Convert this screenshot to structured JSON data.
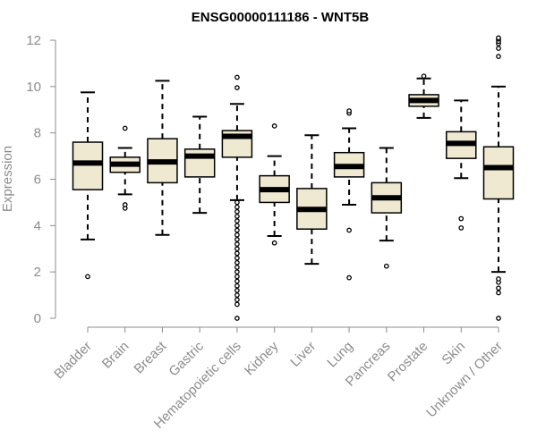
{
  "chart_data": {
    "type": "boxplot",
    "title": "ENSG00000111186 - WNT5B",
    "xlabel": "",
    "ylabel": "Expression",
    "ylim": [
      0,
      12
    ],
    "yticks": [
      0,
      2,
      4,
      6,
      8,
      10,
      12
    ],
    "categories": [
      "Bladder",
      "Brain",
      "Breast",
      "Gastric",
      "Hematopoietic cells",
      "Kidney",
      "Liver",
      "Lung",
      "Pancreas",
      "Prostate",
      "Skin",
      "Unknown / Other"
    ],
    "boxes": [
      {
        "name": "Bladder",
        "whisker_low": 3.4,
        "q1": 5.55,
        "median": 6.7,
        "q3": 7.6,
        "whisker_high": 9.75,
        "outliers": [
          1.8
        ]
      },
      {
        "name": "Brain",
        "whisker_low": 5.35,
        "q1": 6.3,
        "median": 6.65,
        "q3": 6.95,
        "whisker_high": 7.35,
        "outliers": [
          4.75,
          4.9,
          8.2
        ]
      },
      {
        "name": "Breast",
        "whisker_low": 3.6,
        "q1": 5.85,
        "median": 6.75,
        "q3": 7.75,
        "whisker_high": 10.25,
        "outliers": []
      },
      {
        "name": "Gastric",
        "whisker_low": 4.55,
        "q1": 6.1,
        "median": 7.0,
        "q3": 7.3,
        "whisker_high": 8.7,
        "outliers": []
      },
      {
        "name": "Hematopoietic cells",
        "whisker_low": 5.1,
        "q1": 6.95,
        "median": 7.85,
        "q3": 8.1,
        "whisker_high": 9.25,
        "outliers": [
          0.0,
          0.6,
          0.8,
          1.0,
          1.2,
          1.4,
          1.6,
          1.8,
          2.0,
          2.2,
          2.4,
          2.6,
          2.8,
          3.0,
          3.2,
          3.4,
          3.6,
          3.8,
          4.0,
          4.2,
          4.4,
          4.6,
          4.8,
          5.0,
          9.95,
          10.4
        ]
      },
      {
        "name": "Kidney",
        "whisker_low": 3.55,
        "q1": 5.0,
        "median": 5.55,
        "q3": 6.15,
        "whisker_high": 7.0,
        "outliers": [
          3.25,
          8.3
        ]
      },
      {
        "name": "Liver",
        "whisker_low": 2.35,
        "q1": 3.85,
        "median": 4.7,
        "q3": 5.6,
        "whisker_high": 7.9,
        "outliers": []
      },
      {
        "name": "Lung",
        "whisker_low": 4.9,
        "q1": 6.1,
        "median": 6.55,
        "q3": 7.15,
        "whisker_high": 8.2,
        "outliers": [
          1.75,
          3.8,
          8.85,
          8.95
        ]
      },
      {
        "name": "Pancreas",
        "whisker_low": 3.35,
        "q1": 4.55,
        "median": 5.2,
        "q3": 5.85,
        "whisker_high": 7.35,
        "outliers": [
          2.25
        ]
      },
      {
        "name": "Prostate",
        "whisker_low": 8.65,
        "q1": 9.15,
        "median": 9.4,
        "q3": 9.65,
        "whisker_high": 10.35,
        "outliers": [
          10.45
        ]
      },
      {
        "name": "Skin",
        "whisker_low": 6.05,
        "q1": 6.9,
        "median": 7.55,
        "q3": 8.05,
        "whisker_high": 9.4,
        "outliers": [
          3.9,
          4.3
        ]
      },
      {
        "name": "Unknown / Other",
        "whisker_low": 2.0,
        "q1": 5.15,
        "median": 6.5,
        "q3": 7.4,
        "whisker_high": 10.0,
        "outliers": [
          0.0,
          1.1,
          1.3,
          1.55,
          1.7,
          11.3,
          11.65,
          11.85,
          11.95,
          12.05,
          12.1
        ]
      }
    ],
    "colors": {
      "box_fill": "#efe9d2",
      "stroke": "#000000",
      "axis": "#8c8c8c"
    }
  }
}
